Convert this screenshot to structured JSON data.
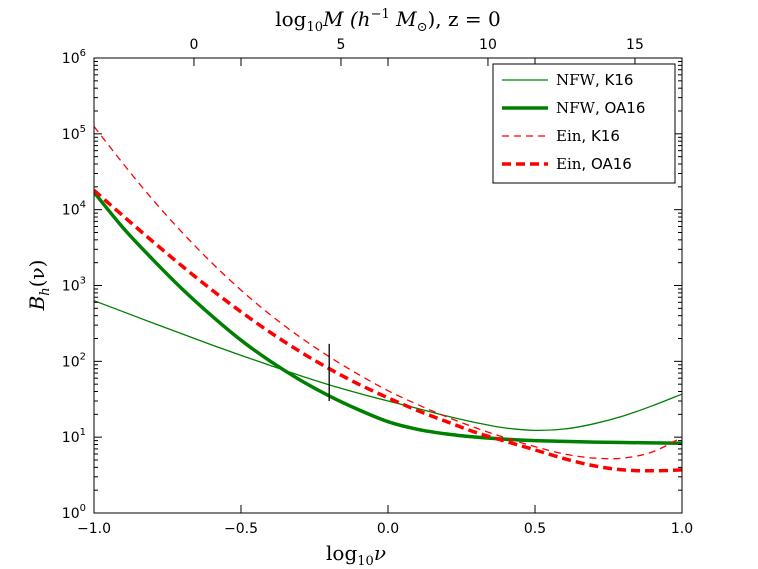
{
  "chart_data": {
    "type": "line",
    "xlabel": "log",
    "xlabel_sub": "10",
    "xlabel_var": "ν",
    "ylabel": "B",
    "ylabel_sub": "h",
    "ylabel_arg": "(ν)",
    "top_axis_label": {
      "prefix": "log",
      "sub": "10",
      "var": "M",
      "paren_open": " (h",
      "sup": "−1",
      "msun": " M",
      "msun_sub": "⊙",
      "paren_close": ")",
      "z_label": ", z = 0"
    },
    "xlim": [
      -1.0,
      1.0
    ],
    "ylim_log10": [
      0,
      6
    ],
    "yscale": "log",
    "x_ticks": [
      -1.0,
      -0.5,
      0.0,
      0.5,
      1.0
    ],
    "x_tick_labels": [
      "−1.0",
      "−0.5",
      "0.0",
      "0.5",
      "1.0"
    ],
    "y_ticks_log10": [
      0,
      1,
      2,
      3,
      4,
      5,
      6
    ],
    "y_tick_base": "10",
    "y_tick_exponents": [
      "0",
      "1",
      "2",
      "3",
      "4",
      "5",
      "6"
    ],
    "top_ticks": [
      {
        "label": "0",
        "x_at_bottom": -0.66
      },
      {
        "label": "5",
        "x_at_bottom": -0.16
      },
      {
        "label": "10",
        "x_at_bottom": 0.34
      },
      {
        "label": "15",
        "x_at_bottom": 0.84
      }
    ],
    "vline": {
      "x": -0.2,
      "y_from": 30,
      "y_to": 170
    },
    "series": [
      {
        "name": "NFW, K16",
        "name_model": "NFW",
        "name_ref": ", K16",
        "color": "#008000",
        "style": "solid",
        "width": 1.3,
        "x": [
          -1.0,
          -0.9,
          -0.8,
          -0.7,
          -0.6,
          -0.5,
          -0.4,
          -0.3,
          -0.2,
          -0.1,
          0.0,
          0.1,
          0.2,
          0.3,
          0.4,
          0.5,
          0.6,
          0.7,
          0.8,
          0.9,
          1.0
        ],
        "y": [
          630,
          450,
          320,
          230,
          165,
          120,
          88,
          65,
          49,
          38,
          30,
          24,
          19,
          15.5,
          13.2,
          12.3,
          12.8,
          15,
          19,
          26,
          37
        ]
      },
      {
        "name": "NFW, OA16",
        "name_model": "NFW",
        "name_ref": ", OA16",
        "color": "#008000",
        "style": "solid",
        "width": 3.5,
        "x": [
          -1.0,
          -0.9,
          -0.8,
          -0.7,
          -0.6,
          -0.5,
          -0.4,
          -0.3,
          -0.2,
          -0.1,
          0.0,
          0.1,
          0.2,
          0.3,
          0.4,
          0.5,
          0.6,
          0.7,
          0.8,
          0.9,
          1.0
        ],
        "y": [
          17000,
          5700,
          2200,
          900,
          400,
          190,
          100,
          57,
          35,
          23,
          16,
          12.7,
          11,
          10,
          9.4,
          9.0,
          8.8,
          8.6,
          8.5,
          8.4,
          8.3
        ]
      },
      {
        "name": "Ein, K16",
        "name_model": "Ein",
        "name_ref": ", K16",
        "color": "#ff0000",
        "style": "dashed",
        "width": 1.3,
        "x": [
          -1.0,
          -0.9,
          -0.8,
          -0.7,
          -0.6,
          -0.5,
          -0.4,
          -0.3,
          -0.2,
          -0.1,
          0.0,
          0.1,
          0.2,
          0.3,
          0.4,
          0.5,
          0.6,
          0.7,
          0.8,
          0.9,
          1.0
        ],
        "y": [
          125000,
          40000,
          13500,
          5000,
          2000,
          870,
          410,
          210,
          115,
          67,
          41,
          27,
          18.5,
          13.2,
          9.8,
          7.5,
          6.0,
          5.3,
          5.3,
          6.4,
          10.0
        ]
      },
      {
        "name": "Ein, OA16",
        "name_model": "Ein",
        "name_ref": ", OA16",
        "color": "#ff0000",
        "style": "dashed",
        "width": 3.5,
        "x": [
          -1.0,
          -0.9,
          -0.8,
          -0.7,
          -0.6,
          -0.5,
          -0.4,
          -0.3,
          -0.2,
          -0.1,
          0.0,
          0.1,
          0.2,
          0.3,
          0.4,
          0.5,
          0.6,
          0.7,
          0.8,
          0.9,
          1.0
        ],
        "y": [
          18000,
          8200,
          3800,
          1800,
          880,
          450,
          240,
          135,
          80,
          50,
          33,
          22.5,
          16,
          11.5,
          8.8,
          6.8,
          5.2,
          4.2,
          3.7,
          3.6,
          3.7
        ]
      }
    ],
    "legend_position": "top-right"
  }
}
